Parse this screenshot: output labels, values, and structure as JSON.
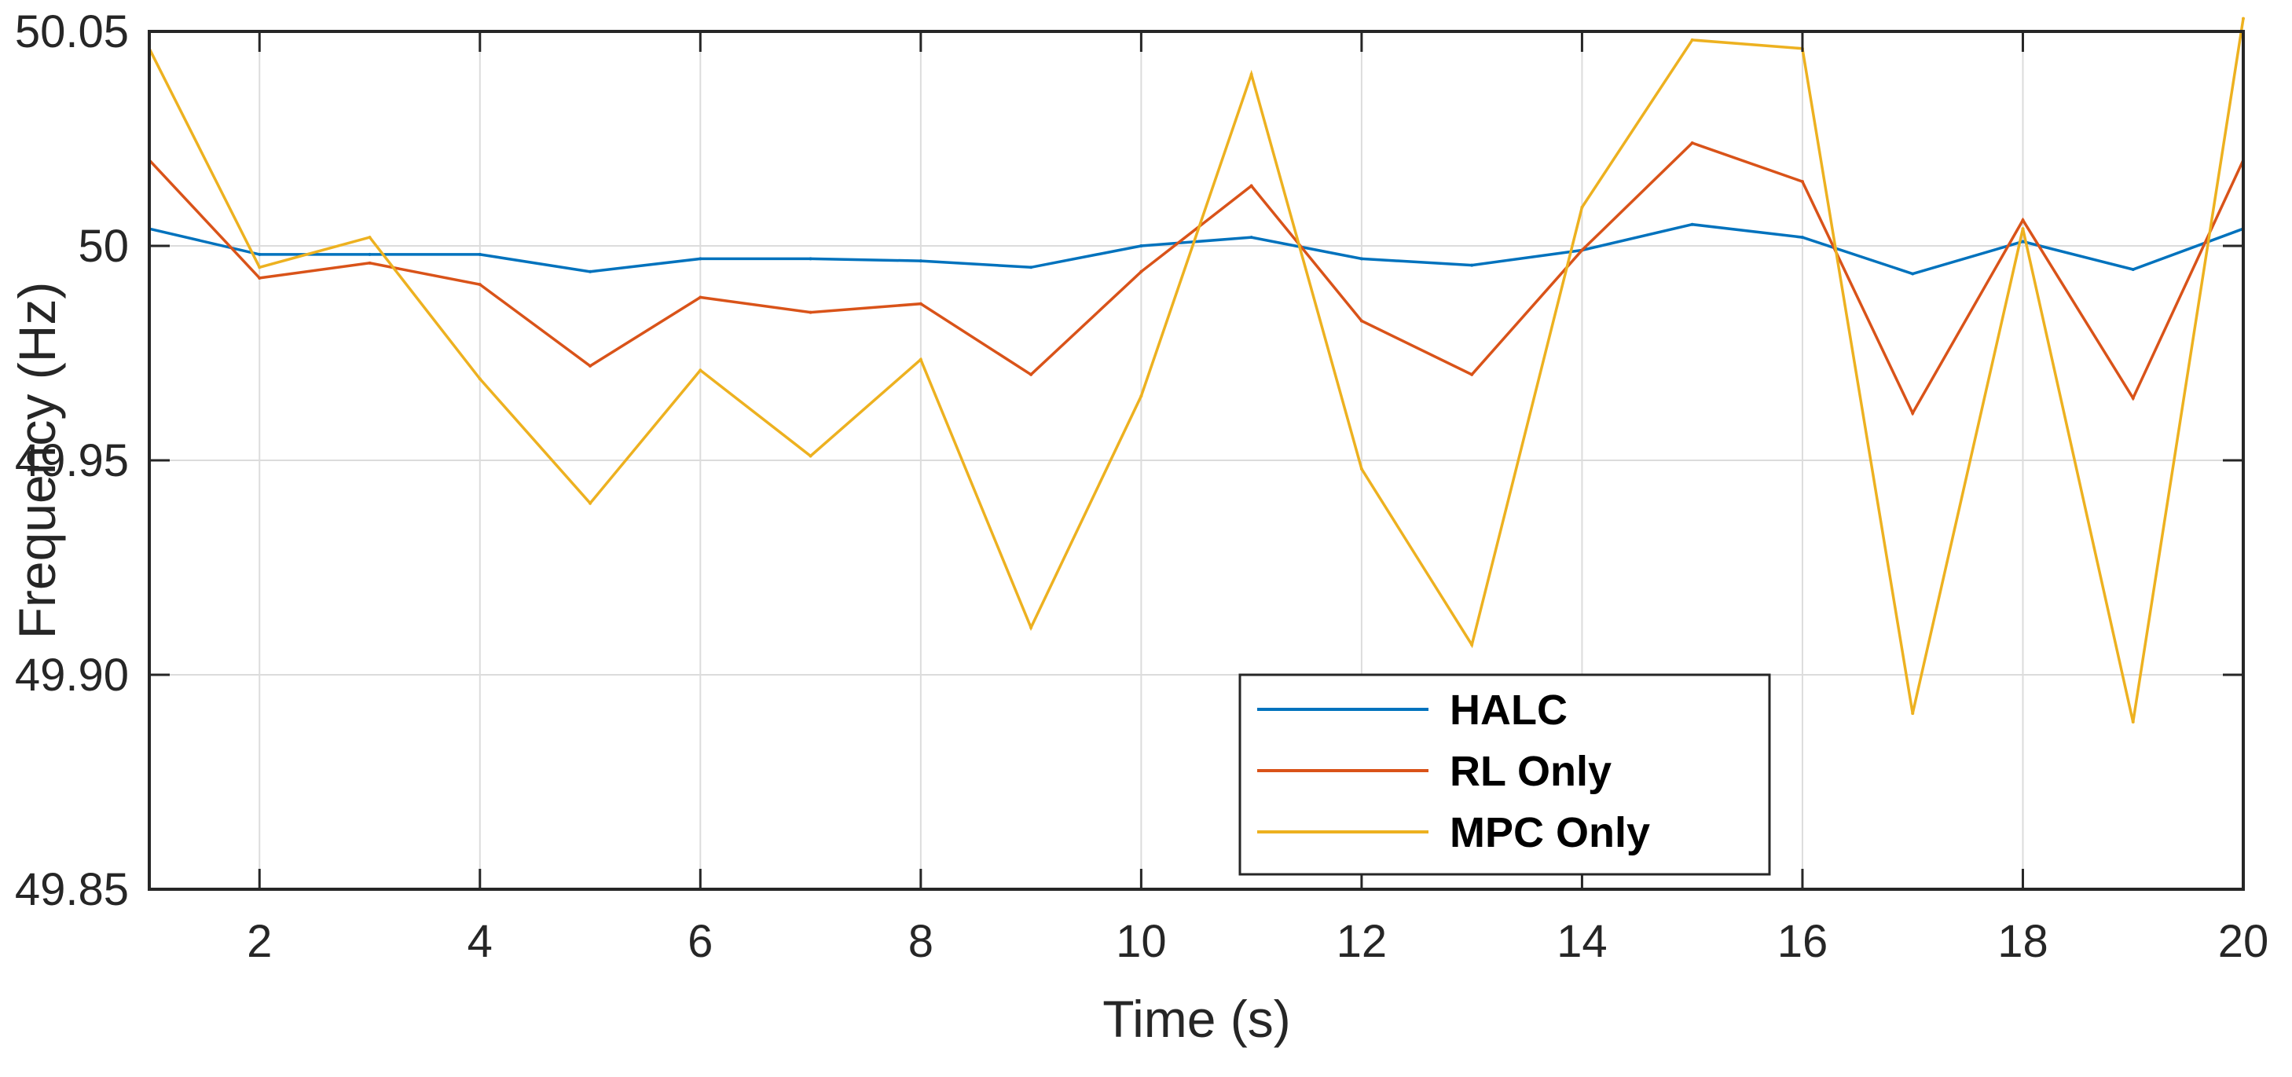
{
  "chart_data": {
    "type": "line",
    "title": "",
    "xlabel": "Time (s)",
    "ylabel": "Frequency (Hz)",
    "xlim": [
      1,
      20
    ],
    "ylim": [
      49.85,
      50.05
    ],
    "grid": true,
    "legend_position": "bottom-center",
    "x": [
      1,
      2,
      3,
      4,
      5,
      6,
      7,
      8,
      9,
      10,
      11,
      12,
      13,
      14,
      15,
      16,
      17,
      18,
      19,
      20
    ],
    "x_ticks": [
      2,
      4,
      6,
      8,
      10,
      12,
      14,
      16,
      18,
      20
    ],
    "x_tick_labels": [
      "2",
      "4",
      "6",
      "8",
      "10",
      "12",
      "14",
      "16",
      "18",
      "20"
    ],
    "y_ticks": [
      49.85,
      49.9,
      49.95,
      50.0,
      50.05
    ],
    "y_tick_labels": [
      "49.85",
      "49.90",
      "49.95",
      "50",
      "50.05"
    ],
    "series": [
      {
        "name": "HALC",
        "color": "#0072BD",
        "values": [
          50.004,
          49.998,
          49.998,
          49.998,
          49.994,
          49.997,
          49.997,
          49.9965,
          49.995,
          50.0,
          50.002,
          49.997,
          49.9955,
          49.999,
          50.005,
          50.002,
          49.9935,
          50.001,
          49.9945,
          50.004
        ]
      },
      {
        "name": "RL Only",
        "color": "#D95319",
        "values": [
          50.02,
          49.9925,
          49.996,
          49.991,
          49.972,
          49.988,
          49.9845,
          49.9865,
          49.97,
          49.994,
          50.014,
          49.9825,
          49.97,
          49.999,
          50.024,
          50.015,
          49.961,
          50.006,
          49.9645,
          50.02
        ]
      },
      {
        "name": "MPC Only",
        "color": "#EDB120",
        "values": [
          50.046,
          49.995,
          50.002,
          49.969,
          49.94,
          49.971,
          49.951,
          49.9735,
          49.911,
          49.965,
          50.04,
          49.948,
          49.907,
          50.009,
          50.048,
          50.046,
          49.891,
          50.004,
          49.889,
          50.053
        ]
      }
    ]
  }
}
